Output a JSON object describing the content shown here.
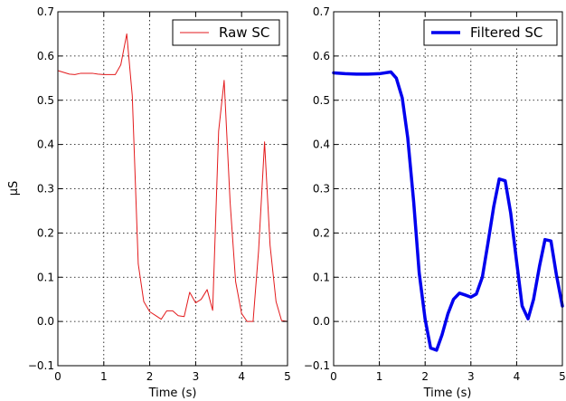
{
  "chart_data": [
    {
      "type": "line",
      "xlabel": "Time (s)",
      "ylabel": "μS",
      "xlim": [
        0,
        5
      ],
      "ylim": [
        -0.1,
        0.7
      ],
      "grid": true,
      "legend_position": "top-right",
      "x_ticks": [
        "0",
        "1",
        "2",
        "3",
        "4",
        "5"
      ],
      "y_ticks": [
        "−0.1",
        "0.0",
        "0.1",
        "0.2",
        "0.3",
        "0.4",
        "0.5",
        "0.6",
        "0.7"
      ],
      "series": [
        {
          "name": "Raw SC",
          "color": "#e31a1c",
          "x": [
            0,
            0.25,
            0.37,
            0.5,
            0.62,
            0.75,
            0.87,
            1.0,
            1.12,
            1.25,
            1.37,
            1.5,
            1.62,
            1.75,
            1.87,
            2.0,
            2.12,
            2.25,
            2.37,
            2.5,
            2.62,
            2.75,
            2.87,
            3.0,
            3.12,
            3.25,
            3.37,
            3.5,
            3.62,
            3.75,
            3.87,
            4.0,
            4.12,
            4.25,
            4.37,
            4.5,
            4.62,
            4.75,
            4.87,
            5.0
          ],
          "y": [
            0.567,
            0.559,
            0.558,
            0.561,
            0.561,
            0.561,
            0.559,
            0.558,
            0.558,
            0.558,
            0.58,
            0.65,
            0.51,
            0.13,
            0.045,
            0.022,
            0.014,
            0.005,
            0.024,
            0.024,
            0.013,
            0.011,
            0.066,
            0.042,
            0.05,
            0.072,
            0.025,
            0.43,
            0.545,
            0.27,
            0.09,
            0.018,
            0.0,
            0.0,
            0.16,
            0.406,
            0.172,
            0.045,
            0.002,
            0.0
          ]
        },
        {
          "name": "Filtered SC",
          "color": "#0000ee",
          "x": [
            0,
            0.25,
            0.5,
            0.75,
            1.0,
            1.25,
            1.37,
            1.5,
            1.62,
            1.75,
            1.87,
            2.0,
            2.12,
            2.25,
            2.37,
            2.5,
            2.62,
            2.75,
            2.87,
            3.0,
            3.12,
            3.25,
            3.37,
            3.5,
            3.62,
            3.75,
            3.87,
            4.0,
            4.12,
            4.25,
            4.37,
            4.5,
            4.62,
            4.75,
            4.87,
            5.0
          ],
          "y": [
            0.562,
            0.56,
            0.559,
            0.559,
            0.56,
            0.564,
            0.55,
            0.505,
            0.415,
            0.27,
            0.11,
            0.005,
            -0.06,
            -0.065,
            -0.03,
            0.018,
            0.05,
            0.064,
            0.06,
            0.055,
            0.062,
            0.1,
            0.175,
            0.26,
            0.322,
            0.318,
            0.245,
            0.135,
            0.035,
            0.006,
            0.05,
            0.125,
            0.185,
            0.182,
            0.105,
            0.035
          ]
        }
      ]
    }
  ]
}
